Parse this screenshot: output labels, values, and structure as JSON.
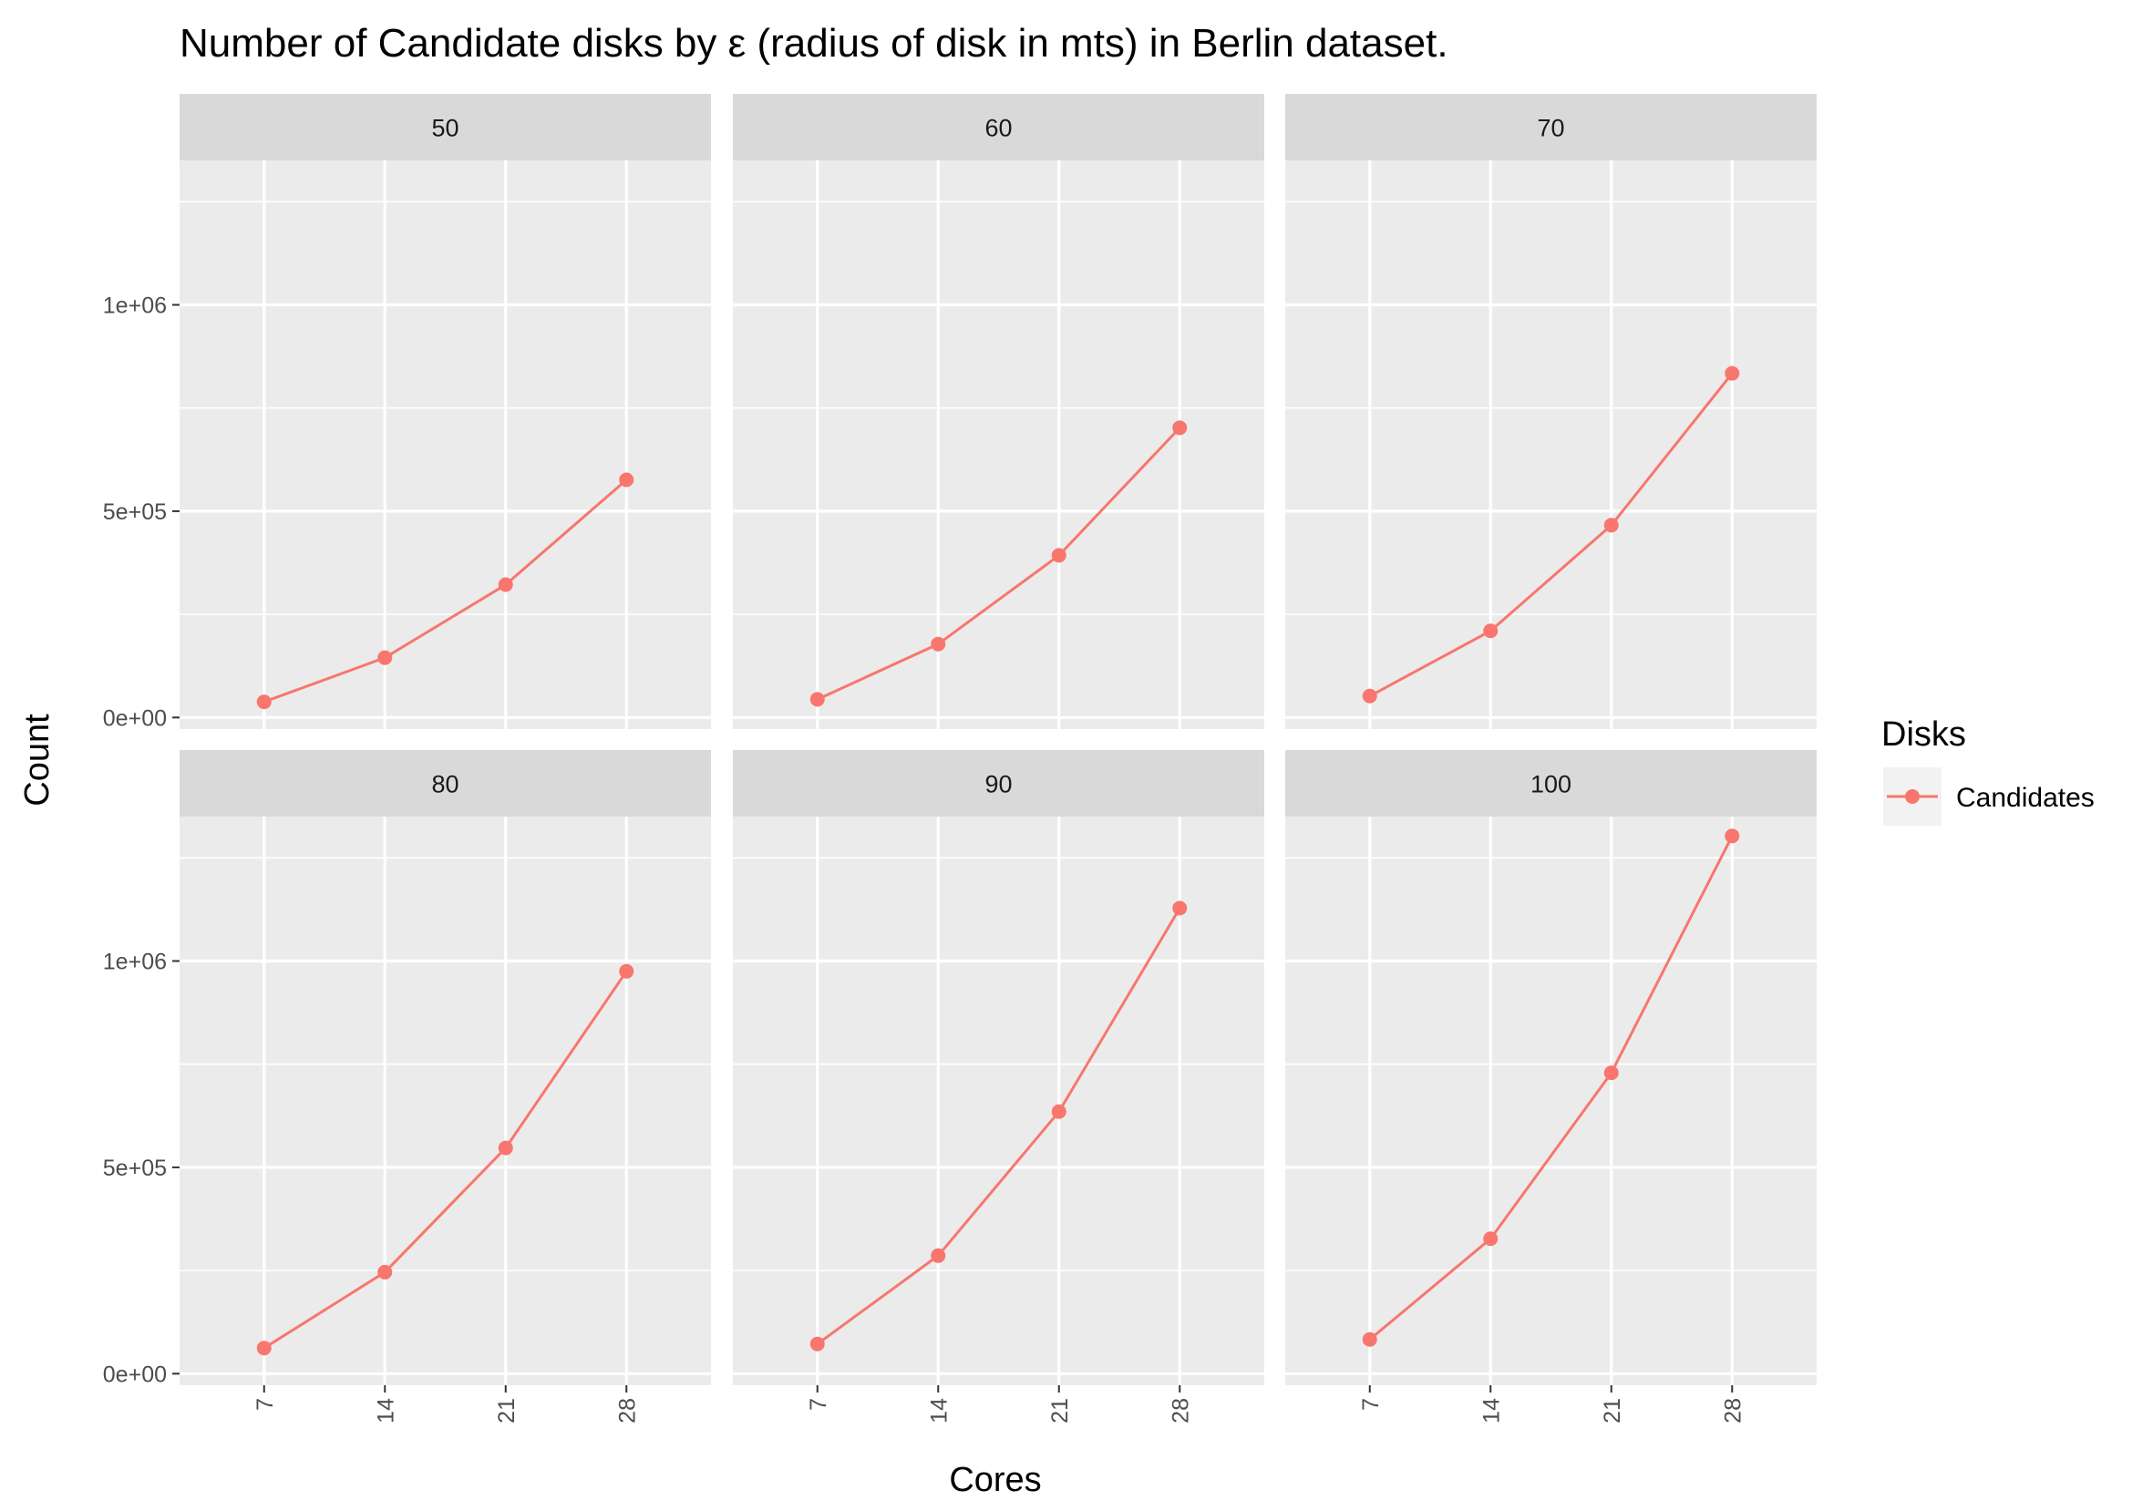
{
  "chart_data": {
    "type": "line",
    "title": "Number of Candidate disks by ε (radius of disk in mts) in Berlin dataset.",
    "xlabel": "Cores",
    "ylabel": "Count",
    "x": [
      7,
      14,
      21,
      28
    ],
    "x_tick_labels": [
      "7",
      "14",
      "21",
      "28"
    ],
    "y_tick_labels": [
      "0e+00",
      "5e+05",
      "1e+06"
    ],
    "y_ticks": [
      0,
      500000,
      1000000
    ],
    "ylim": [
      0,
      1350000
    ],
    "legend": {
      "title": "Disks",
      "entries": [
        "Candidates"
      ],
      "position": "right"
    },
    "series_color": "#F8766D",
    "panel_strip_color": "#D9D9D9",
    "panel_background_color": "#EBEBEB",
    "grid": true,
    "facets": [
      {
        "label": "50",
        "series": [
          {
            "name": "Candidates",
            "values": [
              38000,
              145000,
              322000,
              576000
            ]
          }
        ]
      },
      {
        "label": "60",
        "series": [
          {
            "name": "Candidates",
            "values": [
              44000,
              178000,
              393000,
              702000
            ]
          }
        ]
      },
      {
        "label": "70",
        "series": [
          {
            "name": "Candidates",
            "values": [
              52000,
              210000,
              466000,
              834000
            ]
          }
        ]
      },
      {
        "label": "80",
        "series": [
          {
            "name": "Candidates",
            "values": [
              62000,
              246000,
              547000,
              975000
            ]
          }
        ]
      },
      {
        "label": "90",
        "series": [
          {
            "name": "Candidates",
            "values": [
              72000,
              286000,
              635000,
              1128000
            ]
          }
        ]
      },
      {
        "label": "100",
        "series": [
          {
            "name": "Candidates",
            "values": [
              83000,
              327000,
              729000,
              1303000
            ]
          }
        ]
      }
    ]
  }
}
